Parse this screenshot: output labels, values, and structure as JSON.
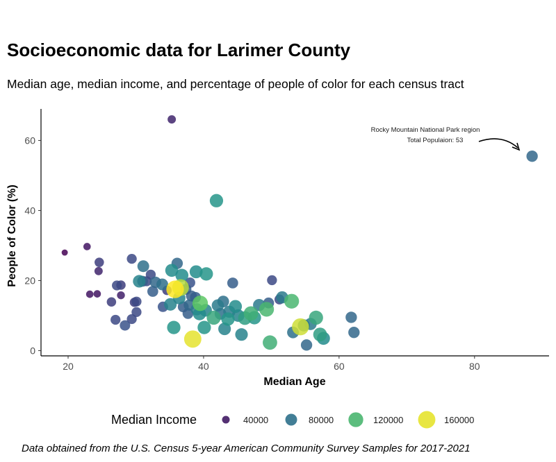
{
  "chart_data": {
    "type": "scatter",
    "title": "Socioeconomic data for Larimer County",
    "subtitle": "Median age, median income, and percentage of people of color for each census tract",
    "xlabel": "Median Age",
    "ylabel": "People of Color (%)",
    "xlim": [
      16,
      91
    ],
    "ylim": [
      -1.5,
      69
    ],
    "xticks": [
      20,
      40,
      60,
      80
    ],
    "yticks": [
      0,
      20,
      40,
      60
    ],
    "size_legend": {
      "title": "Median Income",
      "values": [
        40000,
        80000,
        120000,
        160000
      ],
      "labels": [
        "40000",
        "80000",
        "120000",
        "160000"
      ]
    },
    "annotation": {
      "line1": "Rocky Mountain National Park region",
      "line2": "Total Populaion: 53",
      "target": [
        88.5,
        55.5
      ]
    },
    "caption": "Data obtained from the U.S. Census 5-year American Community Survey Samples for 2017-2021",
    "points": [
      {
        "age": 19.5,
        "poc": 28,
        "income": 30000
      },
      {
        "age": 22.8,
        "poc": 29.7,
        "income": 38000
      },
      {
        "age": 23.2,
        "poc": 16.1,
        "income": 38000
      },
      {
        "age": 24.3,
        "poc": 16.2,
        "income": 38000
      },
      {
        "age": 24.5,
        "poc": 22.7,
        "income": 45000
      },
      {
        "age": 24.6,
        "poc": 25.2,
        "income": 55000
      },
      {
        "age": 26.4,
        "poc": 13.9,
        "income": 55000
      },
      {
        "age": 27.0,
        "poc": 8.8,
        "income": 60000
      },
      {
        "age": 27.2,
        "poc": 18.6,
        "income": 60000
      },
      {
        "age": 27.8,
        "poc": 15.8,
        "income": 42000
      },
      {
        "age": 27.8,
        "poc": 18.7,
        "income": 55000
      },
      {
        "age": 28.4,
        "poc": 7.2,
        "income": 65000
      },
      {
        "age": 29.4,
        "poc": 26.2,
        "income": 60000
      },
      {
        "age": 29.4,
        "poc": 9.0,
        "income": 60000
      },
      {
        "age": 29.8,
        "poc": 13.8,
        "income": 55000
      },
      {
        "age": 30.1,
        "poc": 14.0,
        "income": 60000
      },
      {
        "age": 30.1,
        "poc": 11.0,
        "income": 60000
      },
      {
        "age": 30.5,
        "poc": 19.8,
        "income": 90000
      },
      {
        "age": 31.0,
        "poc": 19.8,
        "income": 70000
      },
      {
        "age": 31.1,
        "poc": 24.1,
        "income": 80000
      },
      {
        "age": 31.6,
        "poc": 19.8,
        "income": 60000
      },
      {
        "age": 32.2,
        "poc": 21.7,
        "income": 60000
      },
      {
        "age": 32.5,
        "poc": 16.9,
        "income": 70000
      },
      {
        "age": 32.9,
        "poc": 19.5,
        "income": 75000
      },
      {
        "age": 33.9,
        "poc": 18.9,
        "income": 80000
      },
      {
        "age": 34.0,
        "poc": 12.5,
        "income": 65000
      },
      {
        "age": 34.6,
        "poc": 17.2,
        "income": 55000
      },
      {
        "age": 35.1,
        "poc": 13.2,
        "income": 90000
      },
      {
        "age": 35.3,
        "poc": 22.9,
        "income": 95000
      },
      {
        "age": 35.3,
        "poc": 66.0,
        "income": 45000
      },
      {
        "age": 35.6,
        "poc": 6.6,
        "income": 100000
      },
      {
        "age": 35.8,
        "poc": 17.5,
        "income": 165000
      },
      {
        "age": 36.1,
        "poc": 24.9,
        "income": 75000
      },
      {
        "age": 36.4,
        "poc": 15.0,
        "income": 90000
      },
      {
        "age": 36.6,
        "poc": 18.0,
        "income": 150000
      },
      {
        "age": 36.8,
        "poc": 21.5,
        "income": 95000
      },
      {
        "age": 37.0,
        "poc": 12.5,
        "income": 70000
      },
      {
        "age": 37.4,
        "poc": 17.5,
        "income": 70000
      },
      {
        "age": 37.7,
        "poc": 10.6,
        "income": 70000
      },
      {
        "age": 37.9,
        "poc": 13.0,
        "income": 75000
      },
      {
        "age": 38.0,
        "poc": 19.4,
        "income": 65000
      },
      {
        "age": 38.2,
        "poc": 15.6,
        "income": 70000
      },
      {
        "age": 38.4,
        "poc": 3.3,
        "income": 160000
      },
      {
        "age": 38.8,
        "poc": 15.2,
        "income": 70000
      },
      {
        "age": 38.9,
        "poc": 22.5,
        "income": 95000
      },
      {
        "age": 39.0,
        "poc": 11.8,
        "income": 85000
      },
      {
        "age": 39.4,
        "poc": 10.5,
        "income": 95000
      },
      {
        "age": 39.5,
        "poc": 13.5,
        "income": 130000
      },
      {
        "age": 40.1,
        "poc": 6.6,
        "income": 100000
      },
      {
        "age": 40.3,
        "poc": 11.5,
        "income": 90000
      },
      {
        "age": 40.4,
        "poc": 21.9,
        "income": 100000
      },
      {
        "age": 41.5,
        "poc": 9.4,
        "income": 110000
      },
      {
        "age": 41.9,
        "poc": 42.8,
        "income": 100000
      },
      {
        "age": 42.1,
        "poc": 12.9,
        "income": 85000
      },
      {
        "age": 42.5,
        "poc": 10.5,
        "income": 80000
      },
      {
        "age": 42.9,
        "poc": 14.0,
        "income": 80000
      },
      {
        "age": 43.1,
        "poc": 6.2,
        "income": 90000
      },
      {
        "age": 43.6,
        "poc": 9.0,
        "income": 100000
      },
      {
        "age": 43.8,
        "poc": 11.1,
        "income": 85000
      },
      {
        "age": 44.3,
        "poc": 19.3,
        "income": 70000
      },
      {
        "age": 44.7,
        "poc": 12.6,
        "income": 95000
      },
      {
        "age": 45.1,
        "poc": 10.0,
        "income": 90000
      },
      {
        "age": 45.6,
        "poc": 4.6,
        "income": 90000
      },
      {
        "age": 46.1,
        "poc": 9.3,
        "income": 105000
      },
      {
        "age": 47.0,
        "poc": 10.6,
        "income": 115000
      },
      {
        "age": 47.5,
        "poc": 9.4,
        "income": 100000
      },
      {
        "age": 48.2,
        "poc": 13.0,
        "income": 85000
      },
      {
        "age": 49.3,
        "poc": 11.8,
        "income": 120000
      },
      {
        "age": 49.6,
        "poc": 13.6,
        "income": 70000
      },
      {
        "age": 49.8,
        "poc": 2.3,
        "income": 115000
      },
      {
        "age": 50.1,
        "poc": 20.1,
        "income": 60000
      },
      {
        "age": 51.2,
        "poc": 14.6,
        "income": 60000
      },
      {
        "age": 51.6,
        "poc": 15.2,
        "income": 85000
      },
      {
        "age": 53.0,
        "poc": 14.1,
        "income": 120000
      },
      {
        "age": 53.2,
        "poc": 5.2,
        "income": 80000
      },
      {
        "age": 54.3,
        "poc": 6.8,
        "income": 155000
      },
      {
        "age": 54.8,
        "poc": 7.2,
        "income": 85000
      },
      {
        "age": 55.2,
        "poc": 1.6,
        "income": 75000
      },
      {
        "age": 55.8,
        "poc": 7.6,
        "income": 85000
      },
      {
        "age": 56.6,
        "poc": 9.4,
        "income": 110000
      },
      {
        "age": 57.2,
        "poc": 4.6,
        "income": 105000
      },
      {
        "age": 57.7,
        "poc": 3.5,
        "income": 95000
      },
      {
        "age": 61.8,
        "poc": 9.5,
        "income": 75000
      },
      {
        "age": 62.2,
        "poc": 5.2,
        "income": 75000
      },
      {
        "age": 88.5,
        "poc": 55.5,
        "income": 75000
      }
    ]
  }
}
